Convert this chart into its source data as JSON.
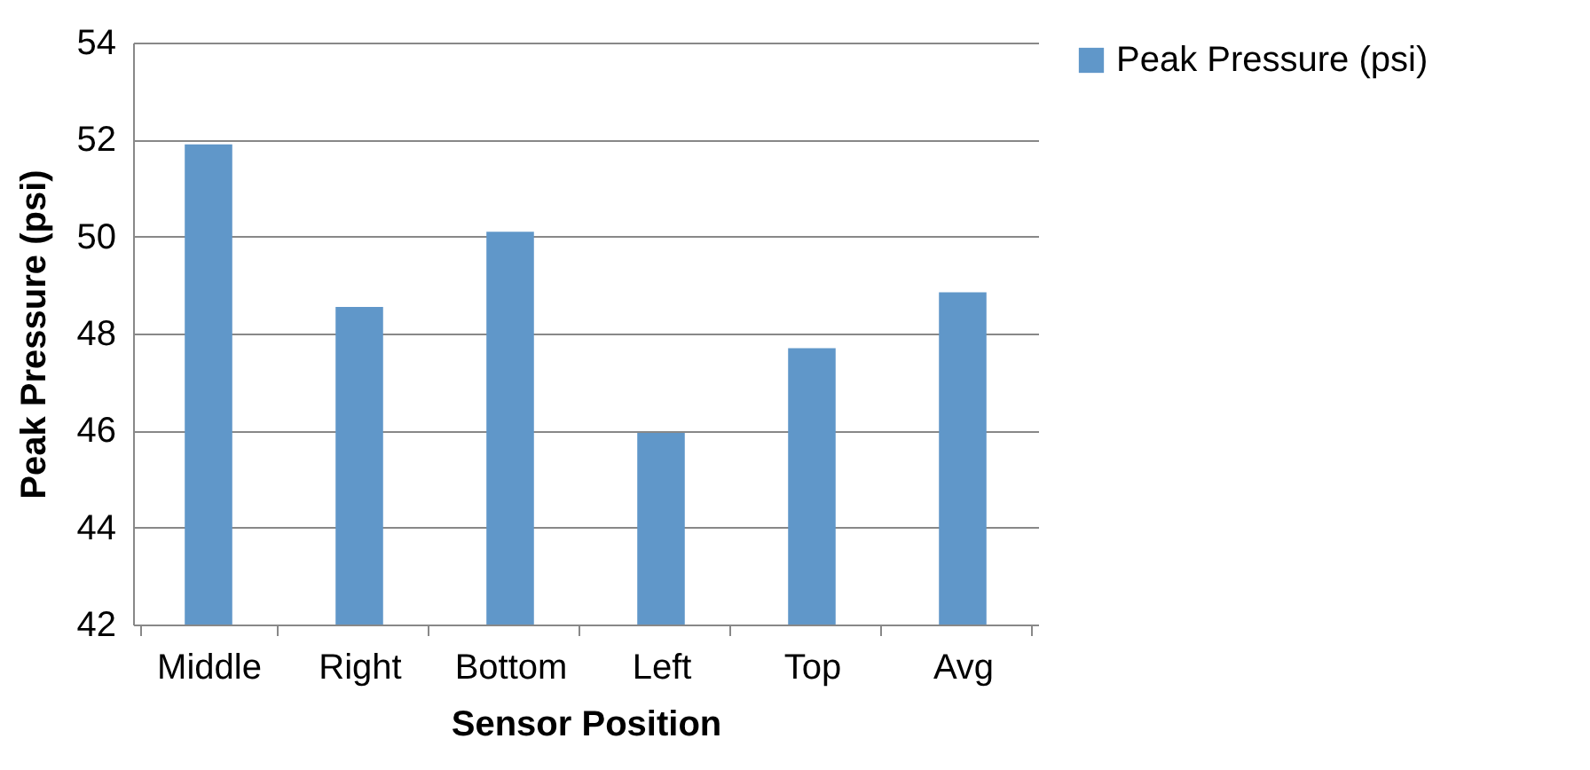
{
  "chart_data": {
    "type": "bar",
    "xlabel": "Sensor Position",
    "ylabel": "Peak Pressure (psi)",
    "categories": [
      "Middle",
      "Right",
      "Bottom",
      "Left",
      "Top",
      "Avg"
    ],
    "series": [
      {
        "name": "Peak Pressure (psi)",
        "color": "#6097c9",
        "values": [
          51.9,
          48.55,
          50.1,
          45.95,
          47.7,
          48.85
        ]
      }
    ],
    "ylim": [
      42,
      54
    ],
    "yticks": [
      42,
      44,
      46,
      48,
      50,
      52,
      54
    ],
    "grid": "y",
    "legend": "right"
  }
}
